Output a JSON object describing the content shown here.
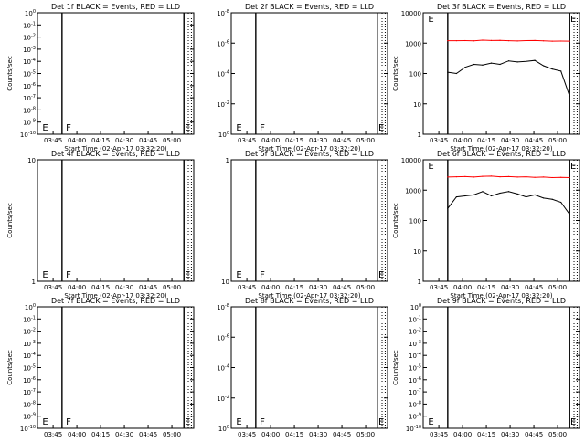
{
  "chart_data": [
    {
      "type": "line",
      "title": "Det 1f BLACK = Events, RED = LLD",
      "xlabel": "Start Time (02-Apr-17 03:32:20)",
      "ylabel": "Counts/sec",
      "x_tick_labels": [
        "03:45",
        "04:00",
        "04:15",
        "04:30",
        "04:45",
        "05:00"
      ],
      "y_scale": "log",
      "ylim": [
        1e-10,
        1e-08
      ],
      "y_tick_labels": [
        "10^-10",
        "10^-9",
        "10^-8",
        "10^-7",
        "10^-6",
        "10^-5",
        "10^-4",
        "10^-3",
        "10^-2",
        "10^-1",
        "10^0"
      ],
      "marker_letters": [
        "E",
        "F",
        "E"
      ],
      "series": []
    },
    {
      "type": "line",
      "title": "Det 2f BLACK = Events, RED = LLD",
      "xlabel": "Start Time (02-Apr-17 03:32:20)",
      "ylabel": "",
      "x_tick_labels": [
        "03:45",
        "04:00",
        "04:15",
        "04:30",
        "04:45",
        "05:00"
      ],
      "y_scale": "log",
      "y_tick_labels": [
        "10^0",
        "10^-2",
        "10^-4",
        "10^-6",
        "10^-8"
      ],
      "marker_letters": [
        "E",
        "F",
        "E"
      ],
      "series": []
    },
    {
      "type": "line",
      "title": "Det 3f BLACK = Events, RED = LLD",
      "xlabel": "Start Time (02-Apr-17 03:32:20)",
      "ylabel": "Counts/sec",
      "x_tick_labels": [
        "03:45",
        "04:00",
        "04:15",
        "04:30",
        "04:45",
        "05:00"
      ],
      "y_scale": "log",
      "ylim": [
        1,
        10000
      ],
      "y_tick_labels": [
        "1",
        "10",
        "100",
        "1000",
        "10000"
      ],
      "marker_letters": [
        "E",
        "E"
      ],
      "series": [
        {
          "color": "#ff0000",
          "values": [
            1200,
            1200,
            1210,
            1190,
            1250,
            1220,
            1230,
            1200,
            1180,
            1210,
            1220,
            1190,
            1160,
            1170,
            1160
          ]
        },
        {
          "color": "#000000",
          "values": [
            110,
            100,
            160,
            200,
            190,
            220,
            200,
            260,
            240,
            250,
            270,
            180,
            140,
            120,
            18
          ]
        }
      ]
    },
    {
      "type": "line",
      "title": "Det 4f BLACK = Events, RED = LLD",
      "xlabel": "Start Time (02-Apr-17 03:32:20)",
      "ylabel": "Counts/sec",
      "x_tick_labels": [
        "03:45",
        "04:00",
        "04:15",
        "04:30",
        "04:45",
        "05:00"
      ],
      "y_scale": "log",
      "ylim": [
        1,
        10
      ],
      "y_tick_labels": [
        "1",
        "10"
      ],
      "marker_letters": [
        "E",
        "F",
        "E"
      ],
      "series": []
    },
    {
      "type": "line",
      "title": "Det 5f BLACK = Events, RED = LLD",
      "xlabel": "Start Time (02-Apr-17 03:32:20)",
      "ylabel": "",
      "x_tick_labels": [
        "03:45",
        "04:00",
        "04:15",
        "04:30",
        "04:45",
        "05:00"
      ],
      "y_scale": "log",
      "y_tick_labels": [
        "10",
        "1"
      ],
      "marker_letters": [
        "E",
        "F",
        "E"
      ],
      "series": []
    },
    {
      "type": "line",
      "title": "Det 6f BLACK = Events, RED = LLD",
      "xlabel": "Start Time (02-Apr-17 03:32:20)",
      "ylabel": "Counts/sec",
      "x_tick_labels": [
        "03:45",
        "04:00",
        "04:15",
        "04:30",
        "04:45",
        "05:00"
      ],
      "y_scale": "log",
      "ylim": [
        1,
        10000
      ],
      "y_tick_labels": [
        "1",
        "10",
        "100",
        "1000",
        "10000"
      ],
      "marker_letters": [
        "E",
        "E"
      ],
      "series": [
        {
          "color": "#ff0000",
          "values": [
            2700,
            2750,
            2800,
            2700,
            2850,
            2900,
            2750,
            2800,
            2700,
            2750,
            2650,
            2700,
            2600,
            2650,
            2600
          ]
        },
        {
          "color": "#000000",
          "values": [
            250,
            600,
            650,
            700,
            900,
            650,
            800,
            900,
            750,
            600,
            700,
            550,
            500,
            400,
            160
          ]
        }
      ]
    },
    {
      "type": "line",
      "title": "Det 7f BLACK = Events, RED = LLD",
      "xlabel": "Start Time (02-Apr-17 03:32:20)",
      "ylabel": "Counts/sec",
      "x_tick_labels": [
        "03:45",
        "04:00",
        "04:15",
        "04:30",
        "04:45",
        "05:00"
      ],
      "y_scale": "log",
      "ylim": [
        1e-10,
        1e-08
      ],
      "y_tick_labels": [
        "10^-10",
        "10^-9",
        "10^-8",
        "10^-7",
        "10^-6",
        "10^-5",
        "10^-4",
        "10^-3",
        "10^-2",
        "10^-1",
        "10^0"
      ],
      "marker_letters": [
        "E",
        "F",
        "E"
      ],
      "series": []
    },
    {
      "type": "line",
      "title": "Det 8f BLACK = Events, RED = LLD",
      "xlabel": "Start Time (02-Apr-17 03:32:20)",
      "ylabel": "",
      "x_tick_labels": [
        "03:45",
        "04:00",
        "04:15",
        "04:30",
        "04:45",
        "05:00"
      ],
      "y_scale": "log",
      "y_tick_labels": [
        "10^0",
        "10^-2",
        "10^-4",
        "10^-6",
        "10^-8"
      ],
      "marker_letters": [
        "E",
        "F",
        "E"
      ],
      "series": []
    },
    {
      "type": "line",
      "title": "Det 9f BLACK = Events, RED = LLD",
      "xlabel": "Start Time (02-Apr-17 03:32:20)",
      "ylabel": "Counts/sec",
      "x_tick_labels": [
        "03:45",
        "04:00",
        "04:15",
        "04:30",
        "04:45",
        "05:00"
      ],
      "y_scale": "log",
      "ylim": [
        1e-10,
        1e-08
      ],
      "y_tick_labels": [
        "10^-10",
        "10^-9",
        "10^-8",
        "10^-7",
        "10^-6",
        "10^-5",
        "10^-4",
        "10^-3",
        "10^-2",
        "10^-1",
        "10^0"
      ],
      "marker_letters": [
        "E",
        "E"
      ],
      "series": []
    }
  ]
}
